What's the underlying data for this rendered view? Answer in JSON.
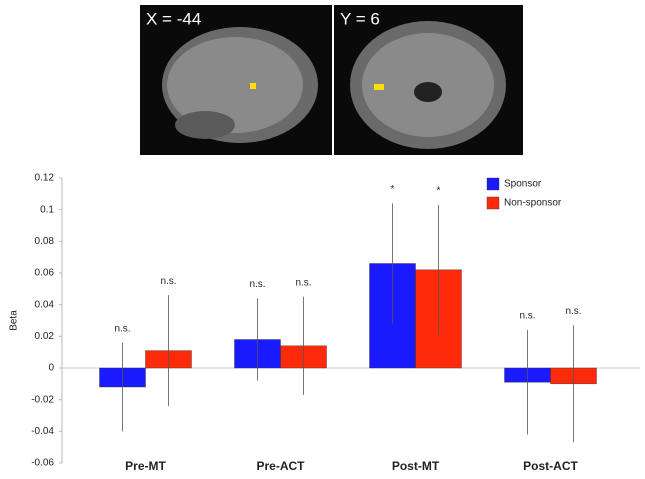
{
  "images": {
    "left_label": "X = -44",
    "right_label": "Y = 6"
  },
  "chart_data": {
    "type": "bar",
    "ylabel": "Beta",
    "categories": [
      "Pre-MT",
      "Pre-ACT",
      "Post-MT",
      "Post-ACT"
    ],
    "series": [
      {
        "name": "Sponsor",
        "color": "#1a1aff",
        "values": [
          -0.012,
          0.018,
          0.066,
          -0.009
        ],
        "errors": [
          0.028,
          0.026,
          0.038,
          0.033
        ],
        "annotations": [
          "n.s.",
          "n.s.",
          "*",
          "n.s."
        ]
      },
      {
        "name": "Non-sponsor",
        "color": "#ff2a0a",
        "values": [
          0.011,
          0.014,
          0.062,
          -0.01
        ],
        "errors": [
          0.035,
          0.031,
          0.041,
          0.037
        ],
        "annotations": [
          "n.s.",
          "n.s.",
          "*",
          "n.s."
        ]
      }
    ],
    "ylim": [
      -0.06,
      0.12
    ],
    "yticks": [
      -0.06,
      -0.04,
      -0.02,
      0,
      0.02,
      0.04,
      0.06,
      0.08,
      0.1,
      0.12
    ],
    "legend": "top-right"
  }
}
